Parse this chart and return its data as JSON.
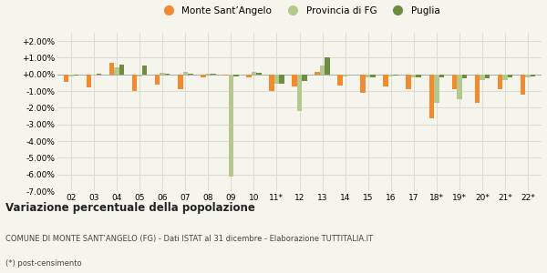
{
  "categories": [
    "02",
    "03",
    "04",
    "05",
    "06",
    "07",
    "08",
    "09",
    "10",
    "11*",
    "12",
    "13",
    "14",
    "15",
    "16",
    "17",
    "18*",
    "19*",
    "20*",
    "21*",
    "22*"
  ],
  "monte": [
    -0.45,
    -0.8,
    0.7,
    -1.0,
    -0.6,
    -0.9,
    -0.2,
    -0.05,
    -0.15,
    -1.0,
    -0.7,
    0.15,
    -0.65,
    -1.1,
    -0.7,
    -0.9,
    -2.65,
    -0.9,
    -1.7,
    -0.9,
    -1.2
  ],
  "provincia": [
    -0.1,
    -0.05,
    0.4,
    -0.1,
    0.1,
    0.15,
    0.05,
    -6.1,
    0.15,
    -0.55,
    -2.2,
    0.55,
    -0.1,
    -0.2,
    -0.1,
    -0.2,
    -1.7,
    -1.5,
    -0.35,
    -0.35,
    -0.15
  ],
  "puglia": [
    -0.05,
    0.05,
    0.6,
    0.55,
    0.05,
    0.05,
    0.05,
    -0.1,
    0.1,
    -0.55,
    -0.4,
    1.0,
    0.0,
    -0.15,
    -0.05,
    -0.15,
    -0.2,
    -0.25,
    -0.25,
    -0.15,
    -0.1
  ],
  "monte_color": "#f28a30",
  "provincia_color": "#b5c98e",
  "puglia_color": "#6b8f3e",
  "bg_color": "#f5f5ed",
  "grid_color": "#ddddcc",
  "title": "Variazione percentuale della popolazione",
  "subtitle": "COMUNE DI MONTE SANT’ANGELO (FG) - Dati ISTAT al 31 dicembre - Elaborazione TUTTITALIA.IT",
  "footnote": "(*) post-censimento",
  "ylim": [
    -7.0,
    2.5
  ],
  "yticks": [
    2.0,
    1.0,
    0.0,
    -1.0,
    -2.0,
    -3.0,
    -4.0,
    -5.0,
    -6.0,
    -7.0
  ],
  "legend_labels": [
    "Monte Sant’Angelo",
    "Provincia di FG",
    "Puglia"
  ]
}
